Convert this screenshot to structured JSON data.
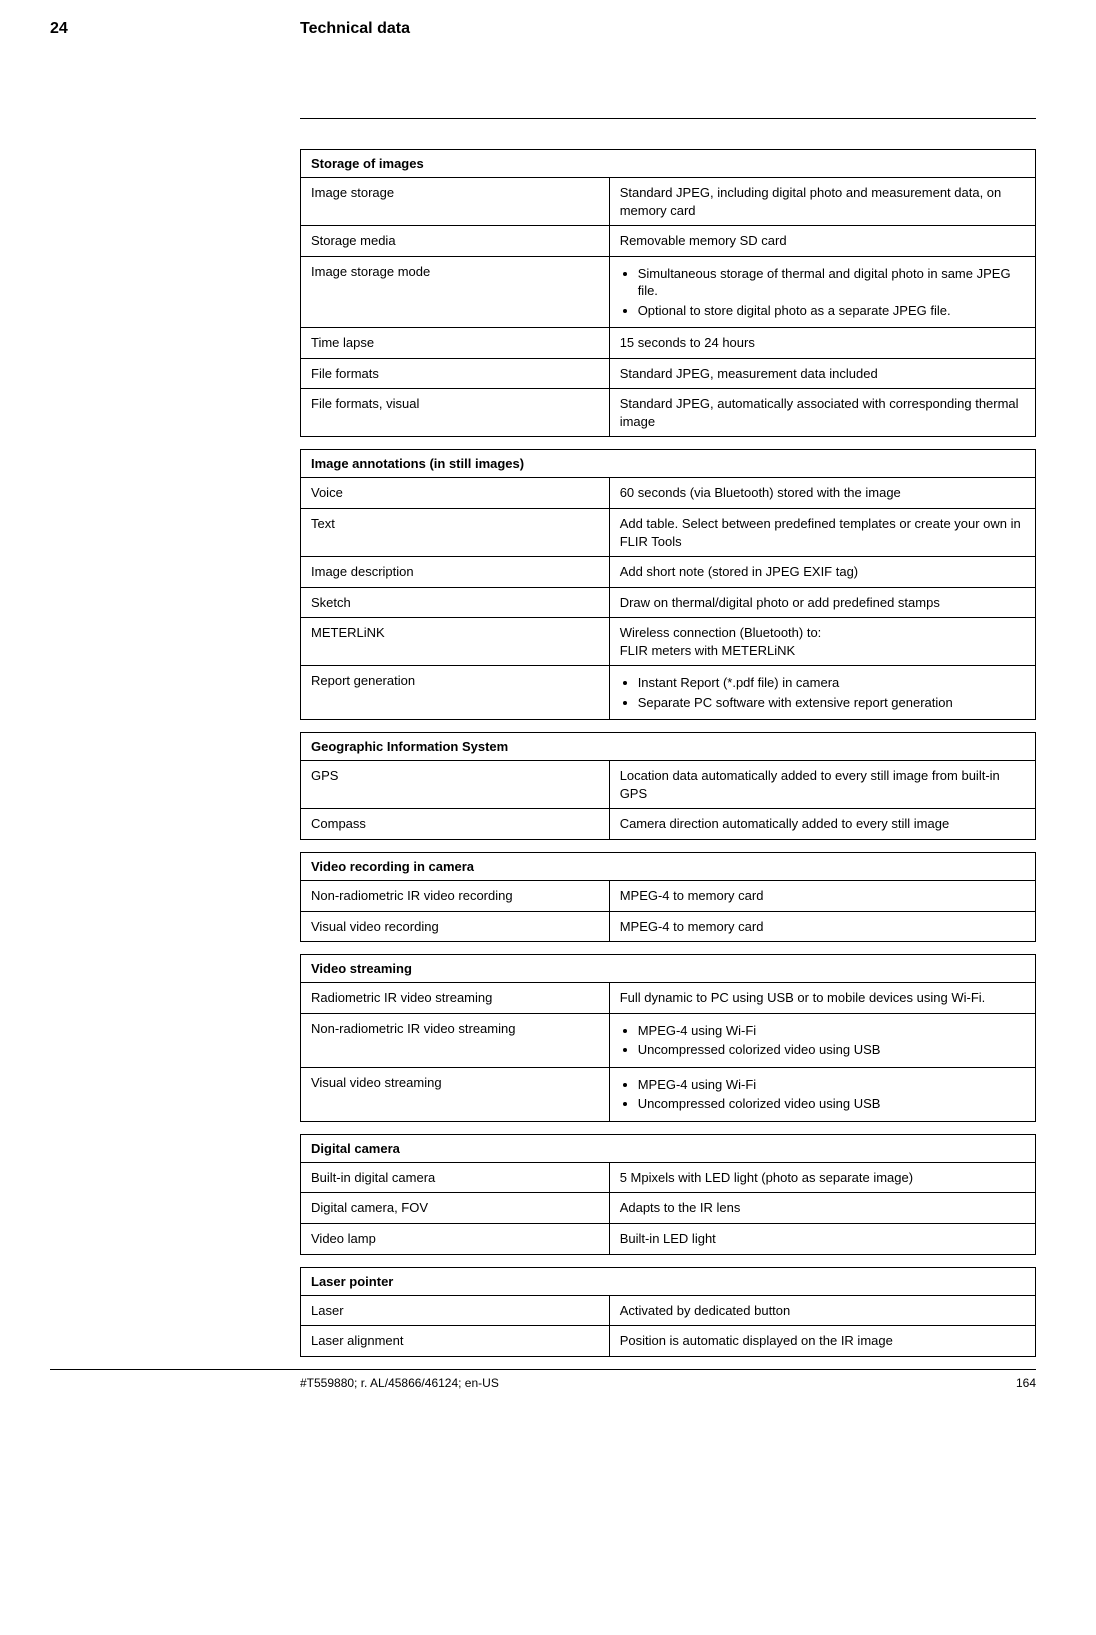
{
  "header": {
    "chapter_number": "24",
    "chapter_title": "Technical data"
  },
  "sections": [
    {
      "title": "Storage of images",
      "rows": [
        {
          "label": "Image storage",
          "value": "Standard JPEG, including digital photo and measurement data, on memory card"
        },
        {
          "label": "Storage media",
          "value": "Removable memory SD card"
        },
        {
          "label": "Image storage mode",
          "list": [
            "Simultaneous storage of thermal and digital photo in same JPEG file.",
            "Optional to store digital photo as a separate JPEG file."
          ]
        },
        {
          "label": "Time lapse",
          "value": "15 seconds to 24 hours"
        },
        {
          "label": "File formats",
          "value": "Standard JPEG, measurement data included"
        },
        {
          "label": "File formats, visual",
          "value": "Standard JPEG, automatically associated with corresponding thermal image"
        }
      ]
    },
    {
      "title": "Image annotations (in still images)",
      "rows": [
        {
          "label": "Voice",
          "value": "60 seconds (via Bluetooth) stored with the image"
        },
        {
          "label": "Text",
          "value": "Add table. Select between predefined templates or create your own in FLIR Tools"
        },
        {
          "label": "Image description",
          "value": "Add short note (stored in JPEG EXIF tag)"
        },
        {
          "label": "Sketch",
          "value": "Draw on thermal/digital photo or add predefined stamps"
        },
        {
          "label": "METERLiNK",
          "value": "Wireless connection (Bluetooth) to:\nFLIR meters with METERLiNK"
        },
        {
          "label": "Report generation",
          "list": [
            "Instant Report (*.pdf file) in camera",
            "Separate PC software with extensive report generation"
          ]
        }
      ]
    },
    {
      "title": "Geographic Information System",
      "rows": [
        {
          "label": "GPS",
          "value": "Location data automatically added to every still image from built-in GPS"
        },
        {
          "label": "Compass",
          "value": "Camera direction automatically added to every still image"
        }
      ]
    },
    {
      "title": "Video recording in camera",
      "rows": [
        {
          "label": "Non-radiometric IR video recording",
          "value": "MPEG-4 to memory card"
        },
        {
          "label": "Visual video recording",
          "value": "MPEG-4 to memory card"
        }
      ]
    },
    {
      "title": "Video streaming",
      "rows": [
        {
          "label": "Radiometric IR video streaming",
          "value": "Full dynamic to PC using USB or to mobile devices using Wi-Fi."
        },
        {
          "label": "Non-radiometric IR video streaming",
          "list": [
            "MPEG-4 using Wi-Fi",
            "Uncompressed colorized video using USB"
          ]
        },
        {
          "label": "Visual video streaming",
          "list": [
            "MPEG-4 using Wi-Fi",
            "Uncompressed colorized video using USB"
          ]
        }
      ]
    },
    {
      "title": "Digital camera",
      "rows": [
        {
          "label": "Built-in digital camera",
          "value": "5 Mpixels with LED light (photo as separate image)"
        },
        {
          "label": "Digital camera, FOV",
          "value": "Adapts to the IR lens"
        },
        {
          "label": "Video lamp",
          "value": "Built-in LED light"
        }
      ]
    },
    {
      "title": "Laser pointer",
      "rows": [
        {
          "label": "Laser",
          "value": "Activated by dedicated button"
        },
        {
          "label": "Laser alignment",
          "value": "Position is automatic displayed on the IR image"
        }
      ]
    }
  ],
  "footer": {
    "doc_ref": "#T559880; r. AL/45866/46124; en-US",
    "page_number": "164"
  }
}
